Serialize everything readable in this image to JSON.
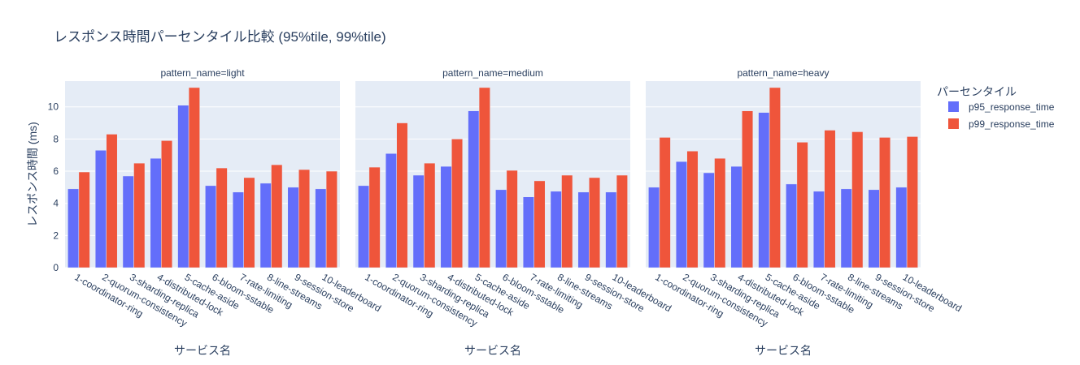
{
  "chart_data": {
    "type": "bar",
    "title": "レスポンス時間パーセンタイル比較 (95%tile, 99%tile)",
    "ylabel": "レスポンス時間 (ms)",
    "xlabel": "サービス名",
    "ylim": [
      0,
      11.6
    ],
    "yticks": [
      0,
      2,
      4,
      6,
      8,
      10
    ],
    "grid": true,
    "legend_title": "パーセンタイル",
    "legend_position": "right",
    "categories": [
      "1-coordinator-ring",
      "2-quorum-consistency",
      "3-sharding-replica",
      "4-distributed-lock",
      "5-cache-aside",
      "6-bloom-sstable",
      "7-rate-limiting",
      "8-line-streams",
      "9-session-store",
      "10-leaderboard"
    ],
    "series_meta": [
      {
        "name": "p95_response_time",
        "color": "#636efa"
      },
      {
        "name": "p99_response_time",
        "color": "#EF553B"
      }
    ],
    "facets": [
      {
        "label": "pattern_name=light",
        "series": [
          {
            "name": "p95_response_time",
            "values": [
              4.9,
              7.3,
              5.7,
              6.8,
              10.1,
              5.1,
              4.7,
              5.25,
              5.0,
              4.9
            ]
          },
          {
            "name": "p99_response_time",
            "values": [
              5.95,
              8.3,
              6.5,
              7.9,
              11.2,
              6.2,
              5.6,
              6.4,
              6.1,
              6.0
            ]
          }
        ]
      },
      {
        "label": "pattern_name=medium",
        "series": [
          {
            "name": "p95_response_time",
            "values": [
              5.1,
              7.1,
              5.75,
              6.3,
              9.75,
              4.85,
              4.4,
              4.75,
              4.7,
              4.7
            ]
          },
          {
            "name": "p99_response_time",
            "values": [
              6.25,
              9.0,
              6.5,
              8.0,
              11.2,
              6.05,
              5.4,
              5.75,
              5.6,
              5.75
            ]
          }
        ]
      },
      {
        "label": "pattern_name=heavy",
        "series": [
          {
            "name": "p95_response_time",
            "values": [
              5.0,
              6.6,
              5.9,
              6.3,
              9.65,
              5.2,
              4.75,
              4.9,
              4.85,
              5.0
            ]
          },
          {
            "name": "p99_response_time",
            "values": [
              8.1,
              7.25,
              6.8,
              9.75,
              11.2,
              7.8,
              8.55,
              8.45,
              8.1,
              8.15
            ]
          }
        ]
      }
    ]
  }
}
